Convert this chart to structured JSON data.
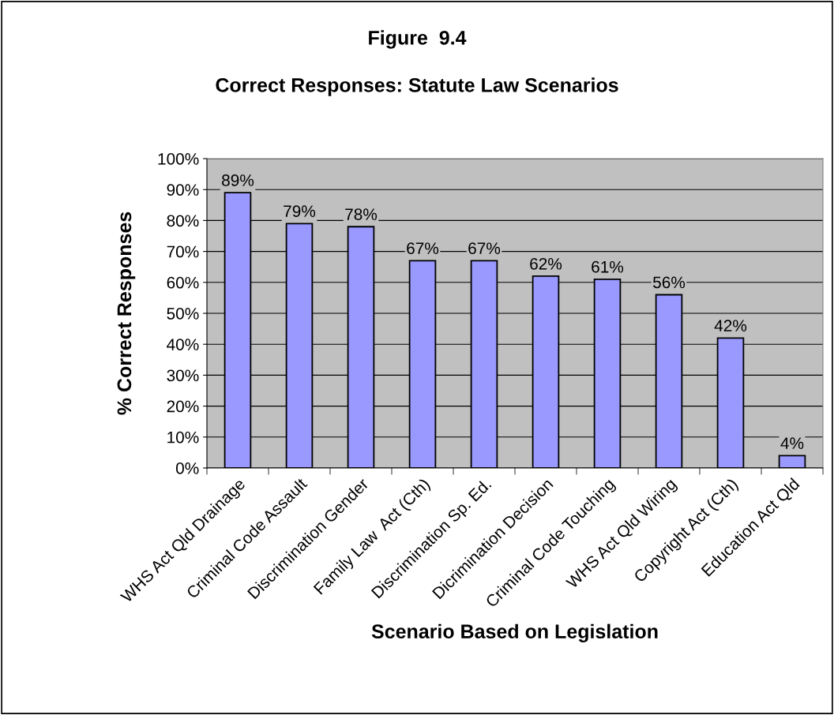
{
  "chart_data": {
    "type": "bar",
    "title": "Figure  9.4",
    "subtitle": "Correct Responses: Statute Law Scenarios",
    "xlabel": "Scenario Based on Legislation",
    "ylabel": "% Correct Responses",
    "categories": [
      "WHS Act Qld Drainage",
      "Criminal Code Assault",
      "Discrimination Gender",
      "Family Law  Act (Cth)",
      "Discrimination Sp. Ed.",
      "Dicrimination Decision",
      "Criminal Code Touching",
      "WHS Act Qld Wiring",
      "Copyright Act (Cth)",
      "Education Act Qld"
    ],
    "values": [
      89,
      79,
      78,
      67,
      67,
      62,
      61,
      56,
      42,
      4
    ],
    "value_labels": [
      "89%",
      "79%",
      "78%",
      "67%",
      "67%",
      "62%",
      "61%",
      "56%",
      "42%",
      "4%"
    ],
    "color": "#9999ff",
    "ylim": [
      0,
      100
    ],
    "yticks": [
      {
        "value": 0,
        "label": "0%"
      },
      {
        "value": 10,
        "label": "10%"
      },
      {
        "value": 20,
        "label": "20%"
      },
      {
        "value": 30,
        "label": "30%"
      },
      {
        "value": 40,
        "label": "40%"
      },
      {
        "value": 50,
        "label": "50%"
      },
      {
        "value": 60,
        "label": "60%"
      },
      {
        "value": 70,
        "label": "70%"
      },
      {
        "value": 80,
        "label": "80%"
      },
      {
        "value": 90,
        "label": "90%"
      },
      {
        "value": 100,
        "label": "100%"
      }
    ],
    "grid": "y",
    "legend": false
  }
}
